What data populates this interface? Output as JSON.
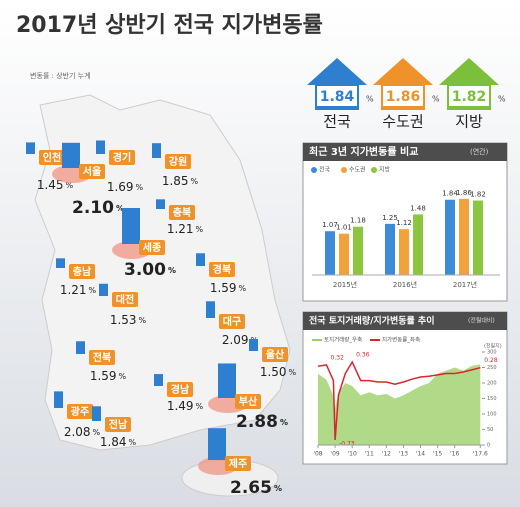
{
  "title": "2017년 상반기 전국 지가변동률",
  "map": {
    "note": "변동률 : 상반기 누계",
    "unit": "%",
    "color": "#2f7fd0",
    "regions": [
      {
        "name": "인천",
        "value": 1.45,
        "label": "1.45"
      },
      {
        "name": "서울",
        "value": 2.1,
        "label": "2.10"
      },
      {
        "name": "경기",
        "value": 1.69,
        "label": "1.69"
      },
      {
        "name": "강원",
        "value": 1.85,
        "label": "1.85"
      },
      {
        "name": "충북",
        "value": 1.21,
        "label": "1.21"
      },
      {
        "name": "세종",
        "value": 3.0,
        "label": "3.00"
      },
      {
        "name": "충남",
        "value": 1.21,
        "label": "1.21"
      },
      {
        "name": "대전",
        "value": 1.53,
        "label": "1.53"
      },
      {
        "name": "경북",
        "value": 1.59,
        "label": "1.59"
      },
      {
        "name": "대구",
        "value": 2.09,
        "label": "2.09"
      },
      {
        "name": "전북",
        "value": 1.59,
        "label": "1.59"
      },
      {
        "name": "울산",
        "value": 1.5,
        "label": "1.50"
      },
      {
        "name": "경남",
        "value": 1.49,
        "label": "1.49"
      },
      {
        "name": "부산",
        "value": 2.88,
        "label": "2.88"
      },
      {
        "name": "광주",
        "value": 2.08,
        "label": "2.08"
      },
      {
        "name": "전남",
        "value": 1.84,
        "label": "1.84"
      },
      {
        "name": "제주",
        "value": 2.65,
        "label": "2.65"
      }
    ]
  },
  "summary": {
    "unit": "%",
    "items": [
      {
        "name": "전국",
        "value": 1.84,
        "color": "#2f7fd0"
      },
      {
        "name": "수도권",
        "value": 1.86,
        "color": "#f0922a"
      },
      {
        "name": "지방",
        "value": 1.82,
        "color": "#7cbf3a"
      }
    ]
  },
  "chart_data": [
    {
      "type": "bar",
      "title": "최근 3년 지가변동률 비교",
      "subtitle": "(연간)",
      "categories": [
        "2015년",
        "2016년",
        "2017년"
      ],
      "ylim": [
        0,
        2.2
      ],
      "series": [
        {
          "name": "전국",
          "color": "#3d8ad6",
          "values": [
            1.07,
            1.25,
            1.84
          ]
        },
        {
          "name": "수도권",
          "color": "#f2a23a",
          "values": [
            1.01,
            1.12,
            1.86
          ]
        },
        {
          "name": "지방",
          "color": "#8cc63f",
          "values": [
            1.18,
            1.48,
            1.82
          ]
        }
      ]
    },
    {
      "type": "line",
      "title": "전국 토지거래량/지가변동률 추이",
      "subtitle": "(전월대비)",
      "y2label": "(천필지)",
      "x": [
        2008,
        2008.5,
        2008.9,
        2009,
        2009.2,
        2009.6,
        2010,
        2010.5,
        2011,
        2011.5,
        2012,
        2012.5,
        2013,
        2013.5,
        2014,
        2014.5,
        2015,
        2015.5,
        2016,
        2016.5,
        2017,
        2017.5
      ],
      "xlim": [
        2008,
        2017.6
      ],
      "xticks": [
        {
          "value": 2008,
          "label": "'08"
        },
        {
          "value": 2009,
          "label": "'09"
        },
        {
          "value": 2010,
          "label": "'10"
        },
        {
          "value": 2011,
          "label": "'11"
        },
        {
          "value": 2012,
          "label": "'12"
        },
        {
          "value": 2013,
          "label": "'13"
        },
        {
          "value": 2014,
          "label": "'14"
        },
        {
          "value": 2015,
          "label": "'15"
        },
        {
          "value": 2016,
          "label": "'16"
        },
        {
          "value": 2017.5,
          "label": "'17.6"
        }
      ],
      "ylim": [
        -0.8,
        0.5
      ],
      "y2lim": [
        0,
        300
      ],
      "y2ticks": [
        0,
        50,
        100,
        150,
        200,
        250,
        300
      ],
      "series": [
        {
          "name": "토지거래량_우축",
          "color": "#9ccf6a",
          "axis": "y2",
          "values": [
            230,
            210,
            160,
            120,
            170,
            200,
            190,
            160,
            170,
            160,
            165,
            150,
            160,
            175,
            190,
            200,
            230,
            240,
            250,
            240,
            255,
            260
          ]
        },
        {
          "name": "지가변동률_좌축",
          "color": "#d9262c",
          "values": [
            0.3,
            0.32,
            0.1,
            -0.73,
            -0.1,
            0.2,
            0.36,
            0.1,
            0.1,
            0.08,
            0.08,
            0.05,
            0.08,
            0.12,
            0.15,
            0.16,
            0.18,
            0.2,
            0.2,
            0.22,
            0.25,
            0.28
          ],
          "value_labels": [
            null,
            "0.32",
            null,
            "-0.73",
            null,
            null,
            "0.36",
            null,
            null,
            null,
            null,
            null,
            null,
            null,
            null,
            null,
            null,
            null,
            null,
            null,
            null,
            "0.28"
          ]
        }
      ]
    }
  ]
}
